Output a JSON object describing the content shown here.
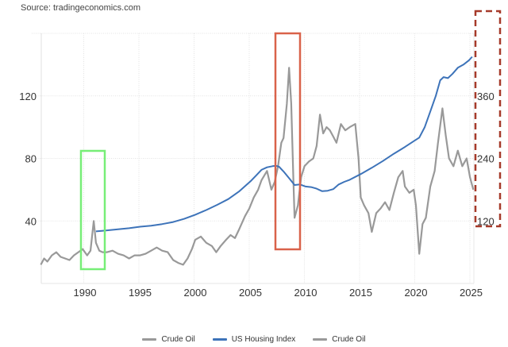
{
  "source": "Source: tradingeconomics.com",
  "colors": {
    "crude_oil": "#999999",
    "us_housing_index": "#3d73b9",
    "highlight_green": "#77ee77",
    "highlight_red": "#d9624a",
    "highlight_dashed": "#a63a2a",
    "grid": "#e3e3e3",
    "axis": "#e0e0e0"
  },
  "legend": [
    {
      "label": "Crude Oil",
      "color": "#999999"
    },
    {
      "label": "US Housing Index",
      "color": "#3d73b9"
    },
    {
      "label": "Crude Oil",
      "color": "#999999"
    }
  ],
  "chart_data": {
    "type": "line",
    "title": "",
    "xlabel": "",
    "ylabel": "",
    "x_ticks": [
      "1990",
      "1995",
      "2000",
      "2005",
      "2010",
      "2015",
      "2020",
      "2025"
    ],
    "y_left_ticks": [
      "40",
      "80",
      "120"
    ],
    "y_right_ticks": [
      "120",
      "240",
      "360"
    ],
    "xlim": [
      1986,
      2025.3
    ],
    "ylim_left": [
      0,
      160
    ],
    "ylim_right": [
      0,
      480
    ],
    "grid": true,
    "legend_position": "bottom",
    "series": [
      {
        "name": "Crude Oil",
        "axis": "left",
        "x": [
          1986.0,
          1986.3,
          1986.6,
          1987.0,
          1987.4,
          1987.8,
          1988.2,
          1988.6,
          1989.0,
          1989.4,
          1989.8,
          1990.2,
          1990.5,
          1990.8,
          1991.0,
          1991.3,
          1991.6,
          1992.0,
          1992.5,
          1993.0,
          1993.5,
          1994.0,
          1994.5,
          1995.0,
          1995.5,
          1996.0,
          1996.5,
          1997.0,
          1997.5,
          1998.0,
          1998.5,
          1998.9,
          1999.3,
          1999.7,
          2000.0,
          2000.5,
          2001.0,
          2001.5,
          2001.9,
          2002.3,
          2002.8,
          2003.2,
          2003.6,
          2004.0,
          2004.5,
          2004.9,
          2005.3,
          2005.7,
          2006.0,
          2006.5,
          2006.9,
          2007.2,
          2007.5,
          2007.8,
          2008.0,
          2008.3,
          2008.5,
          2008.7,
          2008.9,
          2009.0,
          2009.3,
          2009.6,
          2009.9,
          2010.3,
          2010.7,
          2011.0,
          2011.3,
          2011.6,
          2011.9,
          2012.2,
          2012.5,
          2012.8,
          2013.2,
          2013.6,
          2014.0,
          2014.5,
          2014.8,
          2015.0,
          2015.3,
          2015.7,
          2016.0,
          2016.4,
          2016.8,
          2017.2,
          2017.6,
          2018.0,
          2018.4,
          2018.8,
          2019.0,
          2019.4,
          2019.8,
          2020.0,
          2020.3,
          2020.6,
          2020.9,
          2021.3,
          2021.7,
          2022.0,
          2022.4,
          2022.7,
          2023.0,
          2023.4,
          2023.8,
          2024.2,
          2024.6,
          2024.9,
          2025.2
        ],
        "values": [
          12,
          16,
          14,
          18,
          20,
          17,
          16,
          15,
          18,
          20,
          22,
          18,
          21,
          40,
          26,
          21,
          20,
          20,
          21,
          19,
          18,
          16,
          18,
          18,
          19,
          21,
          23,
          21,
          20,
          15,
          13,
          12,
          16,
          22,
          28,
          30,
          26,
          24,
          20,
          24,
          28,
          31,
          29,
          35,
          43,
          48,
          55,
          60,
          66,
          72,
          60,
          65,
          75,
          90,
          93,
          115,
          138,
          115,
          65,
          42,
          50,
          68,
          75,
          78,
          80,
          88,
          108,
          96,
          100,
          98,
          94,
          90,
          102,
          98,
          100,
          102,
          80,
          55,
          50,
          45,
          33,
          45,
          48,
          52,
          47,
          58,
          68,
          72,
          62,
          58,
          60,
          50,
          19,
          38,
          42,
          62,
          72,
          90,
          112,
          95,
          80,
          75,
          85,
          75,
          80,
          68,
          60
        ]
      },
      {
        "name": "US Housing Index",
        "axis": "right",
        "x": [
          1991.0,
          1992.0,
          1993.0,
          1994.0,
          1995.0,
          1996.0,
          1997.0,
          1998.0,
          1999.0,
          2000.0,
          2001.0,
          2002.0,
          2003.0,
          2004.0,
          2005.0,
          2005.5,
          2006.0,
          2006.5,
          2007.0,
          2007.3,
          2007.6,
          2008.0,
          2008.5,
          2009.0,
          2009.5,
          2010.0,
          2010.5,
          2011.0,
          2011.5,
          2012.0,
          2012.5,
          2013.0,
          2013.5,
          2014.0,
          2015.0,
          2016.0,
          2017.0,
          2018.0,
          2019.0,
          2019.8,
          2020.3,
          2020.8,
          2021.3,
          2021.8,
          2022.2,
          2022.5,
          2022.9,
          2023.3,
          2023.8,
          2024.3,
          2024.8,
          2025.1
        ],
        "values": [
          100,
          102,
          104,
          106,
          109,
          111,
          114,
          118,
          124,
          132,
          141,
          151,
          162,
          177,
          196,
          207,
          218,
          223,
          225,
          226,
          224,
          215,
          202,
          189,
          190,
          186,
          185,
          182,
          177,
          178,
          181,
          190,
          195,
          199,
          210,
          222,
          235,
          249,
          262,
          273,
          280,
          300,
          330,
          360,
          390,
          396,
          394,
          402,
          414,
          420,
          428,
          435
        ]
      },
      {
        "name": "Crude Oil",
        "axis": "right",
        "x": [],
        "values": []
      }
    ],
    "annotations": [
      {
        "type": "rect",
        "color": "#77ee77",
        "style": "solid",
        "x_range": [
          1989.8,
          1992.0
        ],
        "y_left_range": [
          12,
          85
        ]
      },
      {
        "type": "rect",
        "color": "#d9624a",
        "style": "solid",
        "x_range": [
          2007.3,
          2009.5
        ],
        "y_left_range": [
          22,
          160
        ]
      },
      {
        "type": "rect",
        "color": "#a63a2a",
        "style": "dashed",
        "around": "right-axis-labels"
      }
    ]
  }
}
